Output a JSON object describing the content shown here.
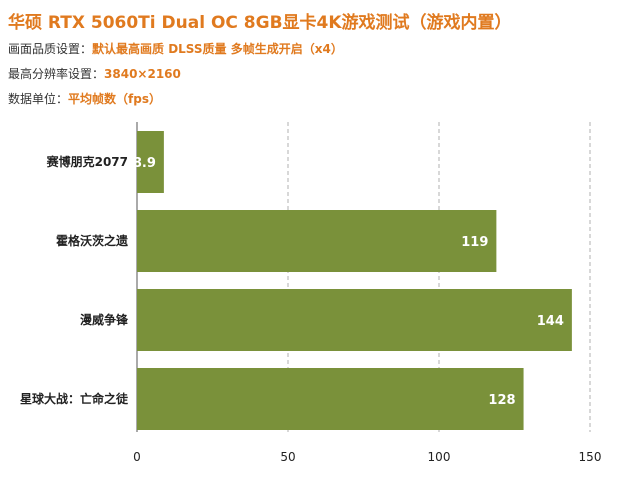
{
  "header": {
    "title": "华硕 RTX 5060Ti Dual OC 8GB显卡4K游戏测试（游戏内置）",
    "settings": [
      {
        "key": "画面品质设置：",
        "value": "默认最高画质  DLSS质量  多帧生成开启（x4）"
      },
      {
        "key": "最高分辨率设置：",
        "value": "3840×2160"
      },
      {
        "key": "数据单位：",
        "value": "平均帧数（fps）"
      }
    ]
  },
  "chart_data": {
    "type": "bar",
    "orientation": "horizontal",
    "categories": [
      "赛博朋克2077",
      "霍格沃茨之遗",
      "漫威争锋",
      "星球大战：亡命之徒"
    ],
    "values": [
      8.9,
      119,
      144,
      128
    ],
    "value_labels": [
      "8.9",
      "119",
      "144",
      "128"
    ],
    "xlim": [
      0,
      150
    ],
    "xticks": [
      0,
      50,
      100,
      150
    ],
    "xlabel": "",
    "ylabel": "",
    "grid": "vertical-dashed",
    "bar_color": "#7a913a"
  }
}
